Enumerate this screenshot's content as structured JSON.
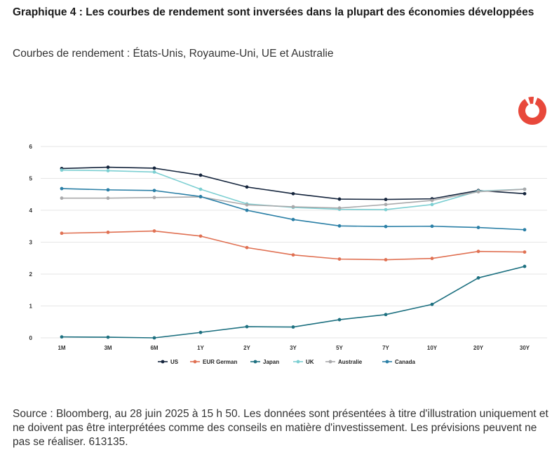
{
  "header": {
    "title": "Graphique 4 : Les courbes de rendement sont inversées dans la plupart des économies développées",
    "subtitle": "Courbes de rendement : États-Unis, Royaume-Uni, UE et Australie"
  },
  "footer": {
    "source": "Source : Bloomberg, au 28 juin 2025 à 15 h 50. Les données sont présentées à titre d'illustration uniquement et ne doivent pas être interprétées comme des conseils en matière d'investissement. Les prévisions peuvent ne pas se réaliser. 613135."
  },
  "logo": {
    "name": "logo-icon",
    "color": "#e8483b"
  },
  "chart_data": {
    "type": "line",
    "title": "Courbes de rendement : États-Unis, Royaume-Uni, UE et Australie",
    "xlabel": "",
    "ylabel": "",
    "categories": [
      "1M",
      "3M",
      "6M",
      "1Y",
      "2Y",
      "3Y",
      "5Y",
      "7Y",
      "10Y",
      "20Y",
      "30Y"
    ],
    "ylim": [
      0,
      6
    ],
    "yticks": [
      0,
      1,
      2,
      3,
      4,
      5,
      6
    ],
    "grid": true,
    "legend_position": "bottom",
    "series": [
      {
        "name": "US",
        "color": "#15253d",
        "values": [
          5.31,
          5.35,
          5.32,
          5.1,
          4.73,
          4.52,
          4.35,
          4.34,
          4.36,
          4.62,
          4.52
        ]
      },
      {
        "name": "EUR German",
        "color": "#e07052",
        "values": [
          3.28,
          3.31,
          3.35,
          3.19,
          2.83,
          2.6,
          2.47,
          2.45,
          2.49,
          2.71,
          2.69
        ]
      },
      {
        "name": "Japan",
        "color": "#1d7080",
        "values": [
          0.03,
          0.02,
          0.0,
          0.17,
          0.35,
          0.34,
          0.57,
          0.73,
          1.05,
          1.88,
          2.24
        ]
      },
      {
        "name": "UK",
        "color": "#7ccfd2",
        "values": [
          5.26,
          5.24,
          5.2,
          4.66,
          4.2,
          4.09,
          4.03,
          4.02,
          4.18,
          4.6,
          4.66
        ]
      },
      {
        "name": "Australie",
        "color": "#a9a9ab",
        "values": [
          4.38,
          4.38,
          4.4,
          4.42,
          4.17,
          4.11,
          4.07,
          4.18,
          4.31,
          4.58,
          4.66
        ]
      },
      {
        "name": "Canada",
        "color": "#2a7fa6",
        "values": [
          4.68,
          4.64,
          4.62,
          4.43,
          4.0,
          3.71,
          3.51,
          3.49,
          3.5,
          3.46,
          3.39
        ]
      }
    ]
  }
}
